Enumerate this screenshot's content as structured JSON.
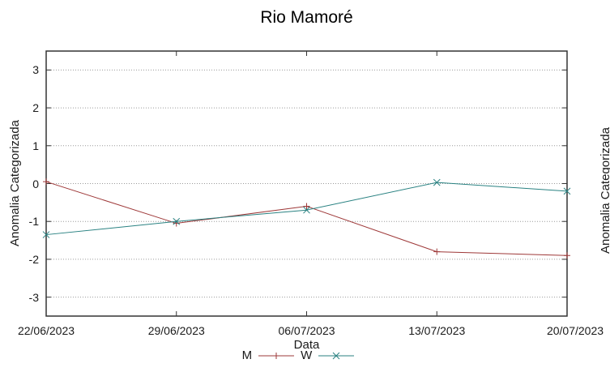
{
  "page": {
    "background": "#ffffff"
  },
  "chart": {
    "title": "Rio Mamoré",
    "xlabel": "Data",
    "ylabel": "Anomalia Categorizada",
    "axis_color": "#333333",
    "grid_color": "#9a9a9a",
    "text_color": "#1a1a1a"
  },
  "next_panel": {
    "ylabel": "Anomalia Categorizada"
  },
  "chart_data": {
    "type": "line",
    "title": "Rio Mamoré",
    "xlabel": "Data",
    "ylabel": "Anomalia Categorizada",
    "categories": [
      "22/06/2023",
      "29/06/2023",
      "06/07/2023",
      "13/07/2023",
      "20/07/2023"
    ],
    "ylim": [
      -3.5,
      3.5
    ],
    "yticks": [
      3,
      2,
      1,
      0,
      -1,
      -2,
      -3
    ],
    "grid": "horizontal dotted gridlines at integer y values",
    "legend_position": "below",
    "series": [
      {
        "name": "M",
        "color": "#9e3838",
        "marker": "plus",
        "values": [
          0.05,
          -1.05,
          -0.6,
          -1.8,
          -1.9
        ]
      },
      {
        "name": "W",
        "color": "#2a8282",
        "marker": "cross",
        "values": [
          -1.35,
          -1.0,
          -0.7,
          0.03,
          -0.2
        ]
      }
    ]
  }
}
